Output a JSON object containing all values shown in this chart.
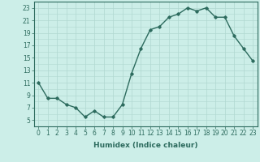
{
  "x": [
    0,
    1,
    2,
    3,
    4,
    5,
    6,
    7,
    8,
    9,
    10,
    11,
    12,
    13,
    14,
    15,
    16,
    17,
    18,
    19,
    20,
    21,
    22,
    23
  ],
  "y": [
    11,
    8.5,
    8.5,
    7.5,
    7,
    5.5,
    6.5,
    5.5,
    5.5,
    7.5,
    12.5,
    16.5,
    19.5,
    20.0,
    21.5,
    22.0,
    23.0,
    22.5,
    23.0,
    21.5,
    21.5,
    18.5,
    16.5,
    14.5
  ],
  "xlabel": "Humidex (Indice chaleur)",
  "ylim": [
    4,
    24
  ],
  "xlim": [
    -0.5,
    23.5
  ],
  "yticks": [
    5,
    7,
    9,
    11,
    13,
    15,
    17,
    19,
    21,
    23
  ],
  "xticks": [
    0,
    1,
    2,
    3,
    4,
    5,
    6,
    7,
    8,
    9,
    10,
    11,
    12,
    13,
    14,
    15,
    16,
    17,
    18,
    19,
    20,
    21,
    22,
    23
  ],
  "xtick_labels": [
    "0",
    "1",
    "2",
    "3",
    "4",
    "5",
    "6",
    "7",
    "8",
    "9",
    "10",
    "11",
    "12",
    "13",
    "14",
    "15",
    "16",
    "17",
    "18",
    "19",
    "20",
    "21",
    "22",
    "23"
  ],
  "line_color": "#2d6b5e",
  "marker": "D",
  "marker_size": 1.8,
  "line_width": 1.0,
  "bg_color": "#cceee8",
  "grid_color": "#b0d8d0",
  "axis_color": "#2d6b5e",
  "tick_color": "#2d6b5e",
  "label_color": "#2d6b5e",
  "label_fontsize": 6.5,
  "tick_fontsize": 5.5
}
